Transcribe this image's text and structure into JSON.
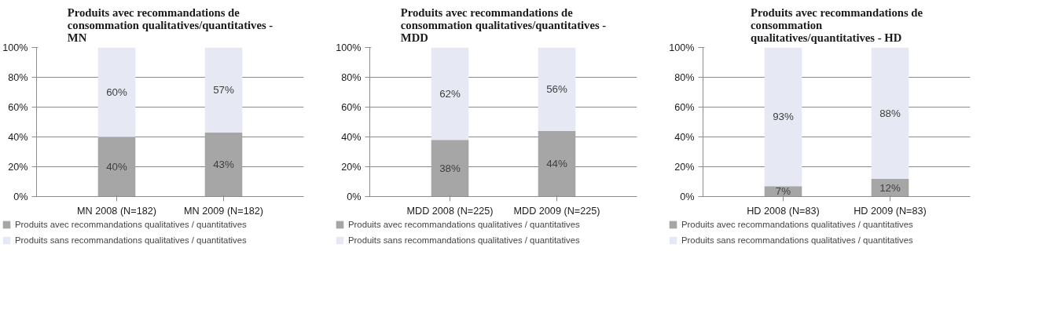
{
  "chart_data": [
    {
      "type": "bar",
      "stacked": true,
      "title": "Produits avec recommandations de\nconsommation qualitatives/quantitatives -\nMN",
      "categories": [
        "MN 2008 (N=182)",
        "MN 2009 (N=182)"
      ],
      "series": [
        {
          "name": "Produits avec recommandations qualitatives / quantitatives",
          "color": "#a6a6a6",
          "values": [
            40,
            43
          ],
          "value_labels": [
            "40%",
            "43%"
          ]
        },
        {
          "name": "Produits sans recommandations qualitatives / quantitatives",
          "color": "#e6e9f4",
          "values": [
            60,
            57
          ],
          "value_labels": [
            "60%",
            "57%"
          ]
        }
      ],
      "ylim": [
        0,
        100
      ],
      "yticks": [
        {
          "value": 0,
          "label": "0%"
        },
        {
          "value": 20,
          "label": "20%"
        },
        {
          "value": 40,
          "label": "40%"
        },
        {
          "value": 60,
          "label": "60%"
        },
        {
          "value": 80,
          "label": "80%"
        },
        {
          "value": 100,
          "label": "100%"
        }
      ],
      "grid": "y",
      "legend": "bottom"
    },
    {
      "type": "bar",
      "stacked": true,
      "title": "Produits avec recommandations de\nconsommation qualitatives/quantitatives -\nMDD",
      "categories": [
        "MDD 2008 (N=225)",
        "MDD 2009 (N=225)"
      ],
      "series": [
        {
          "name": "Produits avec recommandations qualitatives / quantitatives",
          "color": "#a6a6a6",
          "values": [
            38,
            44
          ],
          "value_labels": [
            "38%",
            "44%"
          ]
        },
        {
          "name": "Produits sans recommandations qualitatives / quantitatives",
          "color": "#e6e9f4",
          "values": [
            62,
            56
          ],
          "value_labels": [
            "62%",
            "56%"
          ]
        }
      ],
      "ylim": [
        0,
        100
      ],
      "yticks": [
        {
          "value": 0,
          "label": "0%"
        },
        {
          "value": 20,
          "label": "20%"
        },
        {
          "value": 40,
          "label": "40%"
        },
        {
          "value": 60,
          "label": "60%"
        },
        {
          "value": 80,
          "label": "80%"
        },
        {
          "value": 100,
          "label": "100%"
        }
      ],
      "grid": "y",
      "legend": "bottom"
    },
    {
      "type": "bar",
      "stacked": true,
      "title": "Produits avec recommandations de\nconsommation\nqualitatives/quantitatives - HD",
      "categories": [
        "HD 2008 (N=83)",
        "HD 2009 (N=83)"
      ],
      "series": [
        {
          "name": "Produits avec recommandations qualitatives / quantitatives",
          "color": "#a6a6a6",
          "values": [
            7,
            12
          ],
          "value_labels": [
            "7%",
            "12%"
          ]
        },
        {
          "name": "Produits sans recommandations qualitatives / quantitatives",
          "color": "#e6e9f4",
          "values": [
            93,
            88
          ],
          "value_labels": [
            "93%",
            "88%"
          ]
        }
      ],
      "ylim": [
        0,
        100
      ],
      "yticks": [
        {
          "value": 0,
          "label": "0%"
        },
        {
          "value": 20,
          "label": "20%"
        },
        {
          "value": 40,
          "label": "40%"
        },
        {
          "value": 60,
          "label": "60%"
        },
        {
          "value": 80,
          "label": "80%"
        },
        {
          "value": 100,
          "label": "100%"
        }
      ],
      "grid": "y",
      "legend": "bottom"
    }
  ]
}
